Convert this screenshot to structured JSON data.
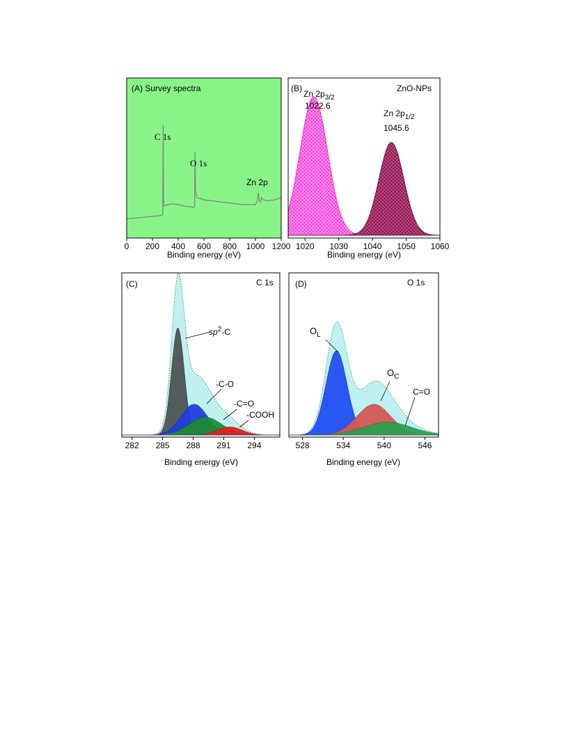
{
  "chart_data": [
    {
      "type": "line",
      "panel": "(A) Survey spectra",
      "xlabel": "Binding energy (eV)",
      "xlim": [
        0,
        1200
      ],
      "xticks": [
        0,
        200,
        400,
        600,
        800,
        1000,
        1200
      ],
      "ylabel": "",
      "background": "#88f388",
      "series": [
        {
          "name": "",
          "color": "#7f7f7f",
          "x": [
            0,
            100,
            200,
            260,
            280,
            283,
            286,
            289,
            300,
            350,
            400,
            450,
            500,
            520,
            528,
            531,
            534,
            545,
            600,
            700,
            800,
            900,
            1000,
            1015,
            1021,
            1030,
            1040,
            1046,
            1060,
            1100,
            1150,
            1200
          ],
          "y": [
            10.5,
            11.2,
            12.0,
            12.5,
            13.0,
            70.0,
            24.0,
            18.5,
            19.0,
            20.0,
            19.5,
            18.5,
            18.0,
            17.5,
            19.0,
            53.0,
            28.0,
            24.0,
            22.5,
            21.5,
            20.5,
            19.5,
            19.5,
            22.0,
            27.0,
            22.0,
            21.0,
            24.0,
            22.5,
            22.0,
            22.5,
            24.0
          ]
        }
      ],
      "annotations": [
        {
          "text": "C 1s",
          "x": 285,
          "y": 70
        },
        {
          "text": "O 1s",
          "x": 531,
          "y": 53
        },
        {
          "text": "Zn 2p",
          "x": 1030,
          "y": 30
        }
      ]
    },
    {
      "type": "area",
      "panel": "(B)",
      "sample": "ZnO-NPs",
      "xlabel": "Binding energy (eV)",
      "xlim": [
        1015,
        1060
      ],
      "xticks": [
        1020,
        1030,
        1040,
        1050,
        1060
      ],
      "series": [
        {
          "name": "",
          "color": "#ff33dd",
          "center": 1022.6,
          "sigma": 4.1,
          "amplitude": 88
        },
        {
          "name": "",
          "color": "#8a0f4e",
          "center": 1045.6,
          "sigma": 3.7,
          "amplitude": 59
        }
      ],
      "annotations": [
        {
          "base": "Zn 2p",
          "sub": "3/2",
          "value": "1022.6"
        },
        {
          "base": "Zn 2p",
          "sub": "1/2",
          "value": "1045.6"
        }
      ]
    },
    {
      "type": "area",
      "panel": "(C)",
      "title": "C 1s",
      "xlabel": "Binding energy (eV)",
      "xlim": [
        281,
        296.5
      ],
      "xticks": [
        282,
        285,
        288,
        291,
        294
      ],
      "envelope": {
        "color": "#c8f4f4",
        "line": "#2e8b57"
      },
      "series": [
        {
          "name": "",
          "color": "#535c5a",
          "center": 286.5,
          "sigma": 0.62,
          "amplitude": 66
        },
        {
          "name": "",
          "color": "#1f3fe0",
          "center": 288.1,
          "sigma": 1.3,
          "amplitude": 19
        },
        {
          "name": "",
          "color": "#1c8c2e",
          "center": 289.2,
          "sigma": 1.6,
          "amplitude": 11
        },
        {
          "name": "",
          "color": "#e0201c",
          "center": 291.6,
          "sigma": 1.2,
          "amplitude": 5
        }
      ],
      "annotations": [
        {
          "base": "sp",
          "sup": "2",
          "tail": "-C"
        },
        {
          "text": "-C-O"
        },
        {
          "text": "-C=O"
        },
        {
          "text": "-COOH"
        }
      ]
    },
    {
      "type": "area",
      "panel": "(D)",
      "title": "O 1s",
      "xlabel": "Binding energy (eV)",
      "xlim": [
        526,
        548
      ],
      "xticks": [
        528,
        534,
        540,
        546
      ],
      "envelope": {
        "color": "#c8f4f4",
        "line": "#2e8b57"
      },
      "series": [
        {
          "name": "",
          "color": "#2a56f2",
          "center": 533.0,
          "sigma": 1.55,
          "amplitude": 52
        },
        {
          "name": "",
          "color": "#d45a56",
          "center": 538.5,
          "sigma": 2.5,
          "amplitude": 19
        },
        {
          "name": "",
          "color": "#28a050",
          "center": 540.5,
          "sigma": 3.5,
          "amplitude": 8
        }
      ],
      "annotations": [
        {
          "base": "O",
          "sub": "L"
        },
        {
          "base": "O",
          "sub": "C"
        },
        {
          "text": "C=O"
        }
      ]
    }
  ]
}
